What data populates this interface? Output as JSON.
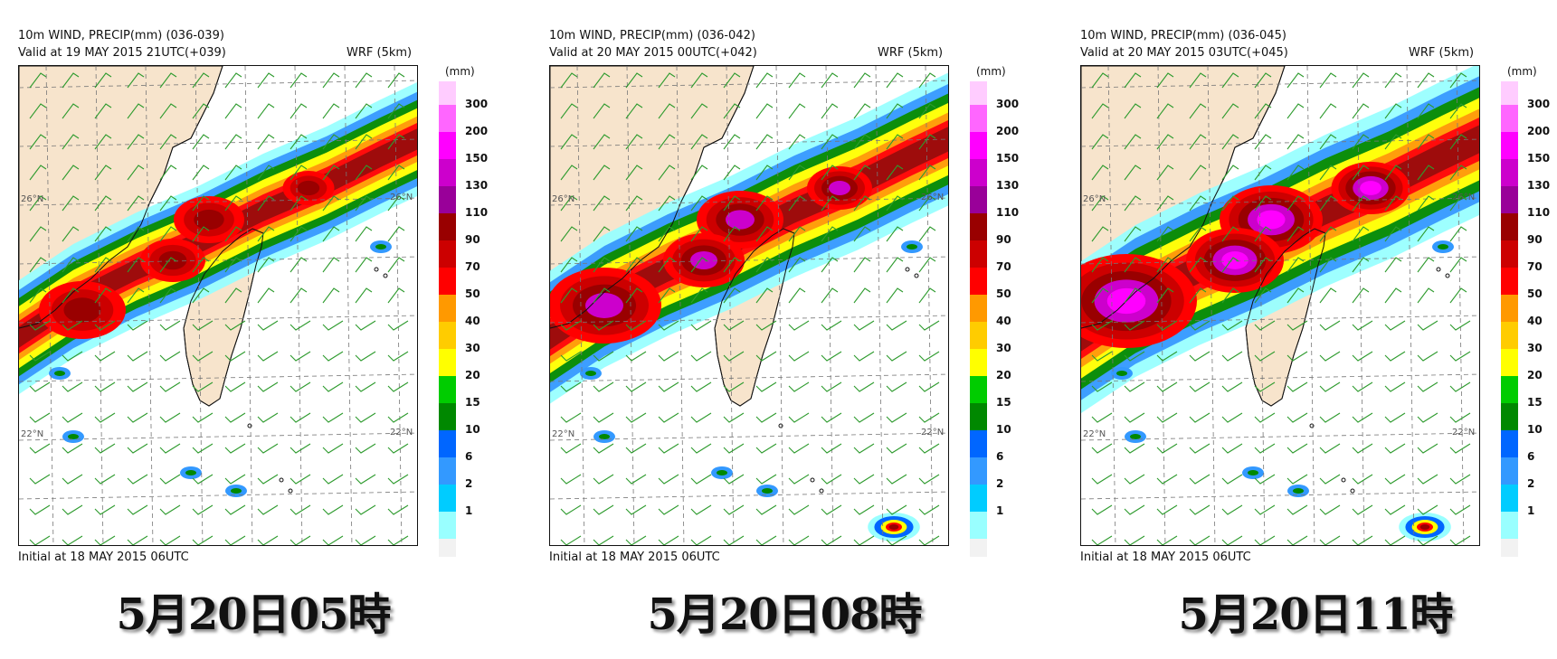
{
  "colorbar": {
    "unit": "(mm)",
    "levels": [
      {
        "label": "300",
        "color": "#ff66ff"
      },
      {
        "label": "200",
        "color": "#ff00ff"
      },
      {
        "label": "150",
        "color": "#cc00cc"
      },
      {
        "label": "130",
        "color": "#990099"
      },
      {
        "label": "110",
        "color": "#990000"
      },
      {
        "label": "90",
        "color": "#cc0000"
      },
      {
        "label": "70",
        "color": "#ff0000"
      },
      {
        "label": "50",
        "color": "#ff9900"
      },
      {
        "label": "40",
        "color": "#ffcc00"
      },
      {
        "label": "30",
        "color": "#ffff00"
      },
      {
        "label": "20",
        "color": "#00cc00"
      },
      {
        "label": "15",
        "color": "#008800"
      },
      {
        "label": "10",
        "color": "#0066ff"
      },
      {
        "label": "6",
        "color": "#3399ff"
      },
      {
        "label": "2",
        "color": "#00ccff"
      },
      {
        "label": "1",
        "color": "#99ffff"
      }
    ],
    "top_swatch_color": "#ffccff",
    "bottom_swatch_color": "#f2f2f2"
  },
  "lat_labels": {
    "north": "26°N",
    "south": "22°N"
  },
  "panels": [
    {
      "title": "10m WIND, PRECIP(mm) (036-039)",
      "valid": "Valid at 19 MAY 2015 21UTC(+039)",
      "model": "WRF (5km)",
      "initial": "Initial at 18 MAY 2015 06UTC",
      "caption": "5月20日05時",
      "intensity": 1
    },
    {
      "title": "10m WIND, PRECIP(mm) (036-042)",
      "valid": "Valid at 20 MAY 2015 00UTC(+042)",
      "model": "WRF (5km)",
      "initial": "Initial at 18 MAY 2015 06UTC",
      "caption": "5月20日08時",
      "intensity": 2
    },
    {
      "title": "10m WIND, PRECIP(mm) (036-045)",
      "valid": "Valid at 20 MAY 2015 03UTC(+045)",
      "model": "WRF (5km)",
      "initial": "Initial at 18 MAY 2015 06UTC",
      "caption": "5月20日11時",
      "intensity": 3
    }
  ],
  "colors": {
    "land": "#f7e4cc",
    "coast": "#111111",
    "grid": "#777777",
    "wind_barb": "#2e9b2e"
  }
}
